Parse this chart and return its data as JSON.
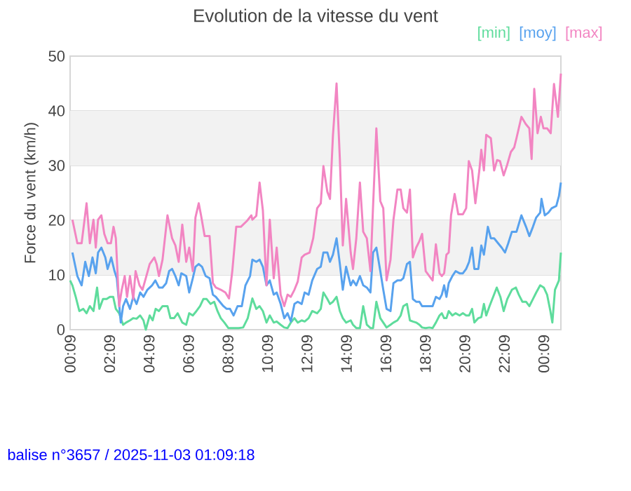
{
  "chart_data": {
    "type": "line",
    "title": "Evolution de la vitesse du vent",
    "ylabel": "Force du vent (km/h)",
    "xlim": [
      "2025-11-02T00:09",
      "2025-11-03T01:01"
    ],
    "ylim": [
      0,
      50
    ],
    "yticks": [
      0,
      10,
      20,
      30,
      40,
      50
    ],
    "xticks": [
      {
        "value": "2025-11-02T00:09",
        "label": "00:09"
      },
      {
        "value": "2025-11-02T02:09",
        "label": "02:09"
      },
      {
        "value": "2025-11-02T04:09",
        "label": "04:09"
      },
      {
        "value": "2025-11-02T06:09",
        "label": "06:09"
      },
      {
        "value": "2025-11-02T08:09",
        "label": "08:09"
      },
      {
        "value": "2025-11-02T10:09",
        "label": "10:09"
      },
      {
        "value": "2025-11-02T12:09",
        "label": "12:09"
      },
      {
        "value": "2025-11-02T14:09",
        "label": "14:09"
      },
      {
        "value": "2025-11-02T16:09",
        "label": "16:09"
      },
      {
        "value": "2025-11-02T18:09",
        "label": "18:09"
      },
      {
        "value": "2025-11-02T20:09",
        "label": "20:09"
      },
      {
        "value": "2025-11-02T22:09",
        "label": "22:09"
      },
      {
        "value": "2025-11-03T00:09",
        "label": "00:09"
      }
    ],
    "grid": "y",
    "legend": "top right",
    "marker": "none",
    "line_style": "solid",
    "annotations": [
      "balise n°3657 / 2025-11-03 01:09:18"
    ],
    "series": [
      {
        "name": "[min]",
        "color": "#5edc9c",
        "x": [
          "2025-11-02T00:09",
          "2025-11-02T00:16",
          "2025-11-02T00:26",
          "2025-11-02T00:37",
          "2025-11-02T00:49",
          "2025-11-02T00:59",
          "2025-11-02T01:09",
          "2025-11-02T01:20",
          "2025-11-02T01:31",
          "2025-11-02T01:38",
          "2025-11-02T01:49",
          "2025-11-02T02:00",
          "2025-11-02T02:10",
          "2025-11-02T02:20",
          "2025-11-02T02:28",
          "2025-11-02T02:38",
          "2025-11-02T02:50",
          "2025-11-02T02:59",
          "2025-11-02T03:11",
          "2025-11-02T03:21",
          "2025-11-02T03:31",
          "2025-11-02T03:42",
          "2025-11-02T03:52",
          "2025-11-02T03:59",
          "2025-11-02T04:11",
          "2025-11-02T04:20",
          "2025-11-02T04:29",
          "2025-11-02T04:39",
          "2025-11-02T04:50",
          "2025-11-02T05:05",
          "2025-11-02T05:14",
          "2025-11-02T05:25",
          "2025-11-02T05:36",
          "2025-11-02T05:50",
          "2025-11-02T06:02",
          "2025-11-02T06:11",
          "2025-11-02T06:22",
          "2025-11-02T06:33",
          "2025-11-02T06:44",
          "2025-11-02T06:54",
          "2025-11-02T07:04",
          "2025-11-02T07:16",
          "2025-11-02T07:27",
          "2025-11-02T07:37",
          "2025-11-02T07:47",
          "2025-11-02T07:58",
          "2025-11-02T08:10",
          "2025-11-02T08:23",
          "2025-11-02T08:41",
          "2025-11-02T08:55",
          "2025-11-02T09:09",
          "2025-11-02T09:23",
          "2025-11-02T09:35",
          "2025-11-02T09:45",
          "2025-11-02T09:55",
          "2025-11-02T10:06",
          "2025-11-02T10:16",
          "2025-11-02T10:28",
          "2025-11-02T10:37",
          "2025-11-02T10:49",
          "2025-11-02T11:00",
          "2025-11-02T11:10",
          "2025-11-02T11:20",
          "2025-11-02T11:31",
          "2025-11-02T11:41",
          "2025-11-02T11:53",
          "2025-11-02T12:02",
          "2025-11-02T12:14",
          "2025-11-02T12:25",
          "2025-11-02T12:40",
          "2025-11-02T12:51",
          "2025-11-02T12:59",
          "2025-11-02T13:11",
          "2025-11-02T13:19",
          "2025-11-02T13:28",
          "2025-11-02T13:39",
          "2025-11-02T13:49",
          "2025-11-02T13:58",
          "2025-11-02T14:08",
          "2025-11-02T14:22",
          "2025-11-02T14:29",
          "2025-11-02T14:39",
          "2025-11-02T14:50",
          "2025-11-02T15:00",
          "2025-11-02T15:11",
          "2025-11-02T15:22",
          "2025-11-02T15:30",
          "2025-11-02T15:40",
          "2025-11-02T15:52",
          "2025-11-02T16:01",
          "2025-11-02T16:11",
          "2025-11-02T16:23",
          "2025-11-02T16:32",
          "2025-11-02T16:44",
          "2025-11-02T16:54",
          "2025-11-02T17:02",
          "2025-11-02T17:13",
          "2025-11-02T17:22",
          "2025-11-02T17:31",
          "2025-11-02T17:41",
          "2025-11-02T17:51",
          "2025-11-02T17:59",
          "2025-11-02T18:10",
          "2025-11-02T18:21",
          "2025-11-02T18:31",
          "2025-11-02T18:41",
          "2025-11-02T18:52",
          "2025-11-02T18:59",
          "2025-11-02T19:06",
          "2025-11-02T19:13",
          "2025-11-02T19:20",
          "2025-11-02T19:31",
          "2025-11-02T19:41",
          "2025-11-02T19:53",
          "2025-11-02T20:03",
          "2025-11-02T20:13",
          "2025-11-02T20:22",
          "2025-11-02T20:31",
          "2025-11-02T20:38",
          "2025-11-02T20:50",
          "2025-11-02T20:59",
          "2025-11-02T21:07",
          "2025-11-02T21:14",
          "2025-11-02T21:24",
          "2025-11-02T21:35",
          "2025-11-02T21:46",
          "2025-11-02T21:57",
          "2025-11-02T22:07",
          "2025-11-02T22:18",
          "2025-11-02T22:32",
          "2025-11-02T22:44",
          "2025-11-02T22:53",
          "2025-11-02T23:04",
          "2025-11-02T23:15",
          "2025-11-02T23:25",
          "2025-11-02T23:36",
          "2025-11-02T23:46",
          "2025-11-02T23:58",
          "2025-11-03T00:09",
          "2025-11-03T00:19",
          "2025-11-03T00:29",
          "2025-11-03T00:35",
          "2025-11-03T00:43",
          "2025-11-03T00:55",
          "2025-11-03T01:01"
        ],
        "values": [
          9.0,
          8.1,
          6.0,
          3.4,
          3.8,
          3.0,
          4.3,
          3.4,
          7.7,
          3.8,
          5.6,
          5.6,
          6.0,
          6.0,
          3.8,
          3.0,
          0.9,
          1.3,
          1.7,
          2.1,
          2.0,
          2.6,
          1.7,
          0,
          2.6,
          1.7,
          3.8,
          3.4,
          4.3,
          4.3,
          2.1,
          2.1,
          3.0,
          1.3,
          0.9,
          3.0,
          2.6,
          3.4,
          4.3,
          5.6,
          5.6,
          4.7,
          5.1,
          3.4,
          2.1,
          1.3,
          0.3,
          0.3,
          0.3,
          0.4,
          2.1,
          5.7,
          3.8,
          4.3,
          3.4,
          1.3,
          2.6,
          1.3,
          1.5,
          0.9,
          0.4,
          0.3,
          1.3,
          2.1,
          1.3,
          1.7,
          1.5,
          2.1,
          3.4,
          3.0,
          3.8,
          6.8,
          5.6,
          4.7,
          5.1,
          6.0,
          3.4,
          2.1,
          1.3,
          1.7,
          0.9,
          0.3,
          0.3,
          4.3,
          0.9,
          0.3,
          0.3,
          5.1,
          2.1,
          1.3,
          0.4,
          0.9,
          1.3,
          1.7,
          2.6,
          4.3,
          4.7,
          1.7,
          1.5,
          1.3,
          0.9,
          0.4,
          0.3,
          0.4,
          0.3,
          1.3,
          2.6,
          3.0,
          2.1,
          2.1,
          3.4,
          2.6,
          3.0,
          2.6,
          3.0,
          2.6,
          2.6,
          3.8,
          1.3,
          2.1,
          2.3,
          4.7,
          2.6,
          4.3,
          6.0,
          7.7,
          6.0,
          3.4,
          5.6,
          7.3,
          7.7,
          6.4,
          5.1,
          5.1,
          4.3,
          5.6,
          6.8,
          8.1,
          7.7,
          6.4,
          3.4,
          1.3,
          7.3,
          9.0,
          14.1
        ]
      },
      {
        "name": "[moy]",
        "color": "#58a2ee",
        "x": [
          "2025-11-02T00:16",
          "2025-11-02T00:31",
          "2025-11-02T00:44",
          "2025-11-02T00:55",
          "2025-11-02T01:06",
          "2025-11-02T01:17",
          "2025-11-02T01:27",
          "2025-11-02T01:34",
          "2025-11-02T01:44",
          "2025-11-02T01:56",
          "2025-11-02T02:03",
          "2025-11-02T02:14",
          "2025-11-02T02:24",
          "2025-11-02T02:31",
          "2025-11-02T02:43",
          "2025-11-02T02:50",
          "2025-11-02T02:59",
          "2025-11-02T03:11",
          "2025-11-02T03:21",
          "2025-11-02T03:31",
          "2025-11-02T03:42",
          "2025-11-02T03:52",
          "2025-11-02T04:04",
          "2025-11-02T04:18",
          "2025-11-02T04:28",
          "2025-11-02T04:39",
          "2025-11-02T04:50",
          "2025-11-02T05:01",
          "2025-11-02T05:10",
          "2025-11-02T05:19",
          "2025-11-02T05:29",
          "2025-11-02T05:39",
          "2025-11-02T05:47",
          "2025-11-02T06:02",
          "2025-11-02T06:11",
          "2025-11-02T06:22",
          "2025-11-02T06:30",
          "2025-11-02T06:40",
          "2025-11-02T06:50",
          "2025-11-02T07:01",
          "2025-11-02T07:13",
          "2025-11-02T07:23",
          "2025-11-02T07:32",
          "2025-11-02T07:44",
          "2025-11-02T07:55",
          "2025-11-02T08:05",
          "2025-11-02T08:15",
          "2025-11-02T08:26",
          "2025-11-02T08:38",
          "2025-11-02T08:51",
          "2025-11-02T09:02",
          "2025-11-02T09:16",
          "2025-11-02T09:23",
          "2025-11-02T09:35",
          "2025-11-02T09:45",
          "2025-11-02T09:55",
          "2025-11-02T10:06",
          "2025-11-02T10:16",
          "2025-11-02T10:28",
          "2025-11-02T10:37",
          "2025-11-02T10:49",
          "2025-11-02T11:00",
          "2025-11-02T11:10",
          "2025-11-02T11:20",
          "2025-11-02T11:31",
          "2025-11-02T11:41",
          "2025-11-02T11:53",
          "2025-11-02T12:02",
          "2025-11-02T12:14",
          "2025-11-02T12:25",
          "2025-11-02T12:40",
          "2025-11-02T12:51",
          "2025-11-02T12:59",
          "2025-11-02T13:11",
          "2025-11-02T13:19",
          "2025-11-02T13:28",
          "2025-11-02T13:39",
          "2025-11-02T13:49",
          "2025-11-02T13:58",
          "2025-11-02T14:08",
          "2025-11-02T14:22",
          "2025-11-02T14:29",
          "2025-11-02T14:39",
          "2025-11-02T14:50",
          "2025-11-02T15:00",
          "2025-11-02T15:11",
          "2025-11-02T15:22",
          "2025-11-02T15:30",
          "2025-11-02T15:40",
          "2025-11-02T15:52",
          "2025-11-02T16:01",
          "2025-11-02T16:11",
          "2025-11-02T16:23",
          "2025-11-02T16:32",
          "2025-11-02T16:44",
          "2025-11-02T16:54",
          "2025-11-02T17:02",
          "2025-11-02T17:13",
          "2025-11-02T17:22",
          "2025-11-02T17:31",
          "2025-11-02T17:41",
          "2025-11-02T17:51",
          "2025-11-02T17:59",
          "2025-11-02T18:10",
          "2025-11-02T18:21",
          "2025-11-02T18:31",
          "2025-11-02T18:41",
          "2025-11-02T18:52",
          "2025-11-02T18:59",
          "2025-11-02T19:06",
          "2025-11-02T19:13",
          "2025-11-02T19:20",
          "2025-11-02T19:31",
          "2025-11-02T19:41",
          "2025-11-02T19:53",
          "2025-11-02T20:03",
          "2025-11-02T20:13",
          "2025-11-02T20:22",
          "2025-11-02T20:31",
          "2025-11-02T20:38",
          "2025-11-02T20:50",
          "2025-11-02T20:59",
          "2025-11-02T21:07",
          "2025-11-02T21:19",
          "2025-11-02T21:28",
          "2025-11-02T21:38",
          "2025-11-02T21:50",
          "2025-11-02T22:01",
          "2025-11-02T22:11",
          "2025-11-02T22:21",
          "2025-11-02T22:32",
          "2025-11-02T22:46",
          "2025-11-02T23:01",
          "2025-11-02T23:15",
          "2025-11-02T23:25",
          "2025-11-02T23:36",
          "2025-11-02T23:46",
          "2025-11-02T23:58",
          "2025-11-03T00:02",
          "2025-11-03T00:12",
          "2025-11-03T00:23",
          "2025-11-03T00:33",
          "2025-11-03T00:47",
          "2025-11-03T00:55",
          "2025-11-03T01:01"
        ],
        "values": [
          14.1,
          9.8,
          8.1,
          12.4,
          9.8,
          13.2,
          10.3,
          14.1,
          15.0,
          13.2,
          11.1,
          13.2,
          10.7,
          9.4,
          1.3,
          4.3,
          5.6,
          3.8,
          6.0,
          4.7,
          6.8,
          6.0,
          7.3,
          8.1,
          9.0,
          7.7,
          7.7,
          8.5,
          10.7,
          11.1,
          9.8,
          8.1,
          10.3,
          9.8,
          6.8,
          9.4,
          11.5,
          12.0,
          11.5,
          9.8,
          9.4,
          6.4,
          6.0,
          5.1,
          4.3,
          3.8,
          3.8,
          2.6,
          4.3,
          4.3,
          8.1,
          9.8,
          12.8,
          12.4,
          12.8,
          11.5,
          8.1,
          9.0,
          6.4,
          6.8,
          4.7,
          2.1,
          3.0,
          1.5,
          4.7,
          5.1,
          4.7,
          6.8,
          6.4,
          9.0,
          11.1,
          11.5,
          14.1,
          14.1,
          12.4,
          13.7,
          16.7,
          12.0,
          7.3,
          11.5,
          8.1,
          9.0,
          8.1,
          9.8,
          8.1,
          7.7,
          6.8,
          14.1,
          15.0,
          10.7,
          7.3,
          3.8,
          3.4,
          8.5,
          9.0,
          9.0,
          9.4,
          12.0,
          12.4,
          5.6,
          5.1,
          5.1,
          4.3,
          4.3,
          4.3,
          4.3,
          6.0,
          5.6,
          6.4,
          8.1,
          6.0,
          8.5,
          9.8,
          10.7,
          10.3,
          10.3,
          11.1,
          12.4,
          15.0,
          11.1,
          11.1,
          15.4,
          13.7,
          18.8,
          16.7,
          16.7,
          15.8,
          15.0,
          14.1,
          15.8,
          17.9,
          17.9,
          20.9,
          18.8,
          17.1,
          18.8,
          20.5,
          21.4,
          23.9,
          20.9,
          21.4,
          22.2,
          22.6,
          24.4,
          26.9
        ]
      },
      {
        "name": "[max]",
        "color": "#f285c2",
        "x": [
          "2025-11-02T00:16",
          "2025-11-02T00:31",
          "2025-11-02T00:44",
          "2025-11-02T00:59",
          "2025-11-02T01:09",
          "2025-11-02T01:20",
          "2025-11-02T01:27",
          "2025-11-02T01:34",
          "2025-11-02T01:44",
          "2025-11-02T01:53",
          "2025-11-02T02:03",
          "2025-11-02T02:13",
          "2025-11-02T02:21",
          "2025-11-02T02:28",
          "2025-11-02T02:38",
          "2025-11-02T02:46",
          "2025-11-02T02:55",
          "2025-11-02T03:02",
          "2025-11-02T03:11",
          "2025-11-02T03:21",
          "2025-11-02T03:28",
          "2025-11-02T03:40",
          "2025-11-02T03:49",
          "2025-11-02T03:59",
          "2025-11-02T04:11",
          "2025-11-02T04:25",
          "2025-11-02T04:32",
          "2025-11-02T04:39",
          "2025-11-02T04:50",
          "2025-11-02T05:05",
          "2025-11-02T05:19",
          "2025-11-02T05:29",
          "2025-11-02T05:39",
          "2025-11-02T05:50",
          "2025-11-02T06:02",
          "2025-11-02T06:11",
          "2025-11-02T06:22",
          "2025-11-02T06:30",
          "2025-11-02T06:40",
          "2025-11-02T06:47",
          "2025-11-02T06:58",
          "2025-11-02T07:13",
          "2025-11-02T07:23",
          "2025-11-02T07:32",
          "2025-11-02T07:47",
          "2025-11-02T08:01",
          "2025-11-02T08:12",
          "2025-11-02T08:22",
          "2025-11-02T08:34",
          "2025-11-02T08:48",
          "2025-11-02T09:07",
          "2025-11-02T09:20",
          "2025-11-02T09:23",
          "2025-11-02T09:35",
          "2025-11-02T09:45",
          "2025-11-02T09:55",
          "2025-11-02T10:06",
          "2025-11-02T10:16",
          "2025-11-02T10:28",
          "2025-11-02T10:37",
          "2025-11-02T10:49",
          "2025-11-02T11:00",
          "2025-11-02T11:10",
          "2025-11-02T11:20",
          "2025-11-02T11:31",
          "2025-11-02T11:41",
          "2025-11-02T11:53",
          "2025-11-02T12:02",
          "2025-11-02T12:17",
          "2025-11-02T12:28",
          "2025-11-02T12:40",
          "2025-11-02T12:51",
          "2025-11-02T12:59",
          "2025-11-02T13:11",
          "2025-11-02T13:19",
          "2025-11-02T13:28",
          "2025-11-02T13:39",
          "2025-11-02T13:49",
          "2025-11-02T13:58",
          "2025-11-02T14:08",
          "2025-11-02T14:22",
          "2025-11-02T14:29",
          "2025-11-02T14:39",
          "2025-11-02T14:50",
          "2025-11-02T15:00",
          "2025-11-02T15:11",
          "2025-11-02T15:22",
          "2025-11-02T15:30",
          "2025-11-02T15:40",
          "2025-11-02T15:52",
          "2025-11-02T16:01",
          "2025-11-02T16:11",
          "2025-11-02T16:23",
          "2025-11-02T16:32",
          "2025-11-02T16:44",
          "2025-11-02T16:54",
          "2025-11-02T17:02",
          "2025-11-02T17:13",
          "2025-11-02T17:22",
          "2025-11-02T17:31",
          "2025-11-02T17:41",
          "2025-11-02T17:51",
          "2025-11-02T17:59",
          "2025-11-02T18:10",
          "2025-11-02T18:21",
          "2025-11-02T18:31",
          "2025-11-02T18:41",
          "2025-11-02T18:52",
          "2025-11-02T18:59",
          "2025-11-02T19:06",
          "2025-11-02T19:13",
          "2025-11-02T19:20",
          "2025-11-02T19:27",
          "2025-11-02T19:38",
          "2025-11-02T19:49",
          "2025-11-02T20:03",
          "2025-11-02T20:13",
          "2025-11-02T20:21",
          "2025-11-02T20:31",
          "2025-11-02T20:41",
          "2025-11-02T20:53",
          "2025-11-02T20:59",
          "2025-11-02T21:07",
          "2025-11-02T21:14",
          "2025-11-02T21:28",
          "2025-11-02T21:38",
          "2025-11-02T21:47",
          "2025-11-02T21:56",
          "2025-11-02T22:07",
          "2025-11-02T22:18",
          "2025-11-02T22:29",
          "2025-11-02T22:39",
          "2025-11-02T22:46",
          "2025-11-02T23:01",
          "2025-11-02T23:14",
          "2025-11-02T23:25",
          "2025-11-02T23:32",
          "2025-11-02T23:40",
          "2025-11-02T23:50",
          "2025-11-03T00:00",
          "2025-11-03T00:08",
          "2025-11-03T00:19",
          "2025-11-03T00:30",
          "2025-11-03T00:40",
          "2025-11-03T00:52",
          "2025-11-03T01:01"
        ],
        "values": [
          20.1,
          15.8,
          15.8,
          23.1,
          15.8,
          20.1,
          15.0,
          20.1,
          20.9,
          17.5,
          15.8,
          15.8,
          18.8,
          16.7,
          4.3,
          7.3,
          9.8,
          6.0,
          9.8,
          5.6,
          10.7,
          8.1,
          7.3,
          9.4,
          12.0,
          13.2,
          12.0,
          9.8,
          12.8,
          20.9,
          16.7,
          15.4,
          12.4,
          19.2,
          12.4,
          15.0,
          10.7,
          20.5,
          23.1,
          20.9,
          17.1,
          17.1,
          8.5,
          7.7,
          7.3,
          6.8,
          5.7,
          10.7,
          18.8,
          18.8,
          19.9,
          20.9,
          20.1,
          20.8,
          26.9,
          21.8,
          8.1,
          20.1,
          9.4,
          15.0,
          6.4,
          4.3,
          6.4,
          6.0,
          7.3,
          8.8,
          13.2,
          13.7,
          14.1,
          16.7,
          22.2,
          23.1,
          29.9,
          25.2,
          23.9,
          35.5,
          45.0,
          31.2,
          15.4,
          23.9,
          14.1,
          11.1,
          16.7,
          26.9,
          17.9,
          16.7,
          10.7,
          22.6,
          36.8,
          23.5,
          22.2,
          9.0,
          12.8,
          20.1,
          25.6,
          25.6,
          22.2,
          21.4,
          25.6,
          13.2,
          15.0,
          16.2,
          17.5,
          10.7,
          9.8,
          9.0,
          15.6,
          10.3,
          9.8,
          10.3,
          13.7,
          14.1,
          20.9,
          24.8,
          21.1,
          21.1,
          22.2,
          30.8,
          29.1,
          23.1,
          29.1,
          32.9,
          29.1,
          35.6,
          35.0,
          29.1,
          31.0,
          30.8,
          28.2,
          30.2,
          32.5,
          33.3,
          35.0,
          38.9,
          37.6,
          36.8,
          31.2,
          44.0,
          35.9,
          38.9,
          36.8,
          36.8,
          35.9,
          44.9,
          38.9,
          46.8
        ]
      }
    ]
  }
}
